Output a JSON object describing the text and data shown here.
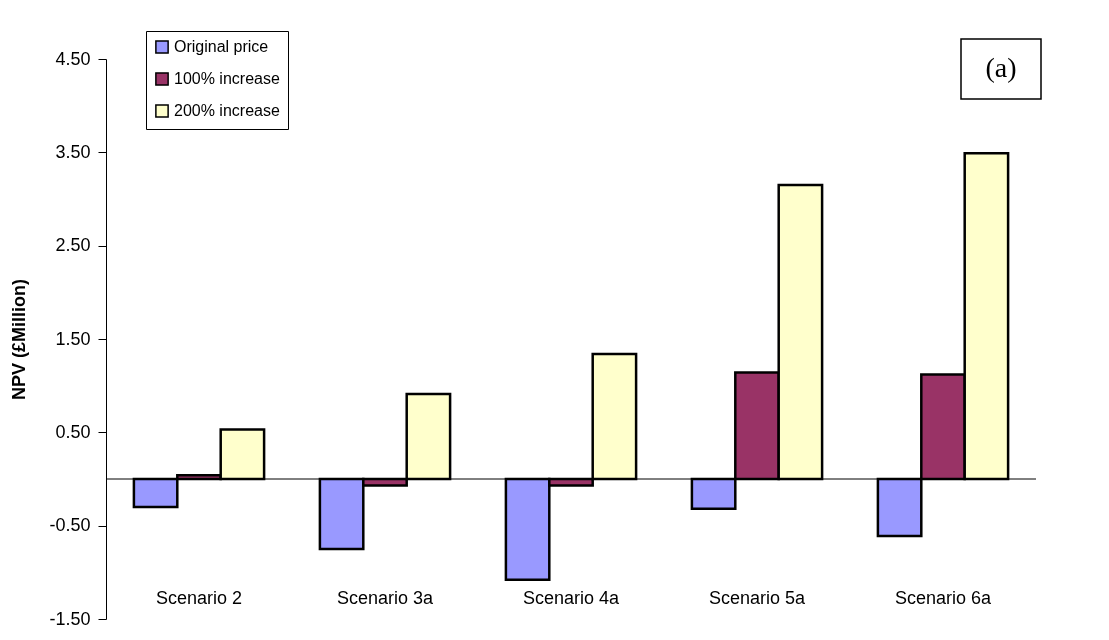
{
  "chart_data": {
    "type": "bar",
    "ylabel": "NPV (£Million)",
    "categories": [
      "Scenario 2",
      "Scenario 3a",
      "Scenario 4a",
      "Scenario 5a",
      "Scenario 6a"
    ],
    "series": [
      {
        "name": "Original price",
        "color": "#9999ff",
        "values": [
          -0.3,
          -0.75,
          -1.08,
          -0.32,
          -0.61
        ]
      },
      {
        "name": "100% increase",
        "color": "#993366",
        "values": [
          0.04,
          -0.07,
          -0.07,
          1.14,
          1.12
        ]
      },
      {
        "name": "200% increase",
        "color": "#ffffcc",
        "values": [
          0.53,
          0.91,
          1.34,
          3.15,
          3.49
        ]
      }
    ],
    "ylim": [
      -1.5,
      4.5
    ],
    "yticks": [
      {
        "value": -1.5,
        "label": "-1.50"
      },
      {
        "value": -0.5,
        "label": "-0.50"
      },
      {
        "value": 0.5,
        "label": "0.50"
      },
      {
        "value": 1.5,
        "label": "1.50"
      },
      {
        "value": 2.5,
        "label": "2.50"
      },
      {
        "value": 3.5,
        "label": "3.50"
      },
      {
        "value": 4.5,
        "label": "4.50"
      }
    ],
    "annotations": [
      "(a)"
    ],
    "legend": "top left",
    "grid": false
  }
}
